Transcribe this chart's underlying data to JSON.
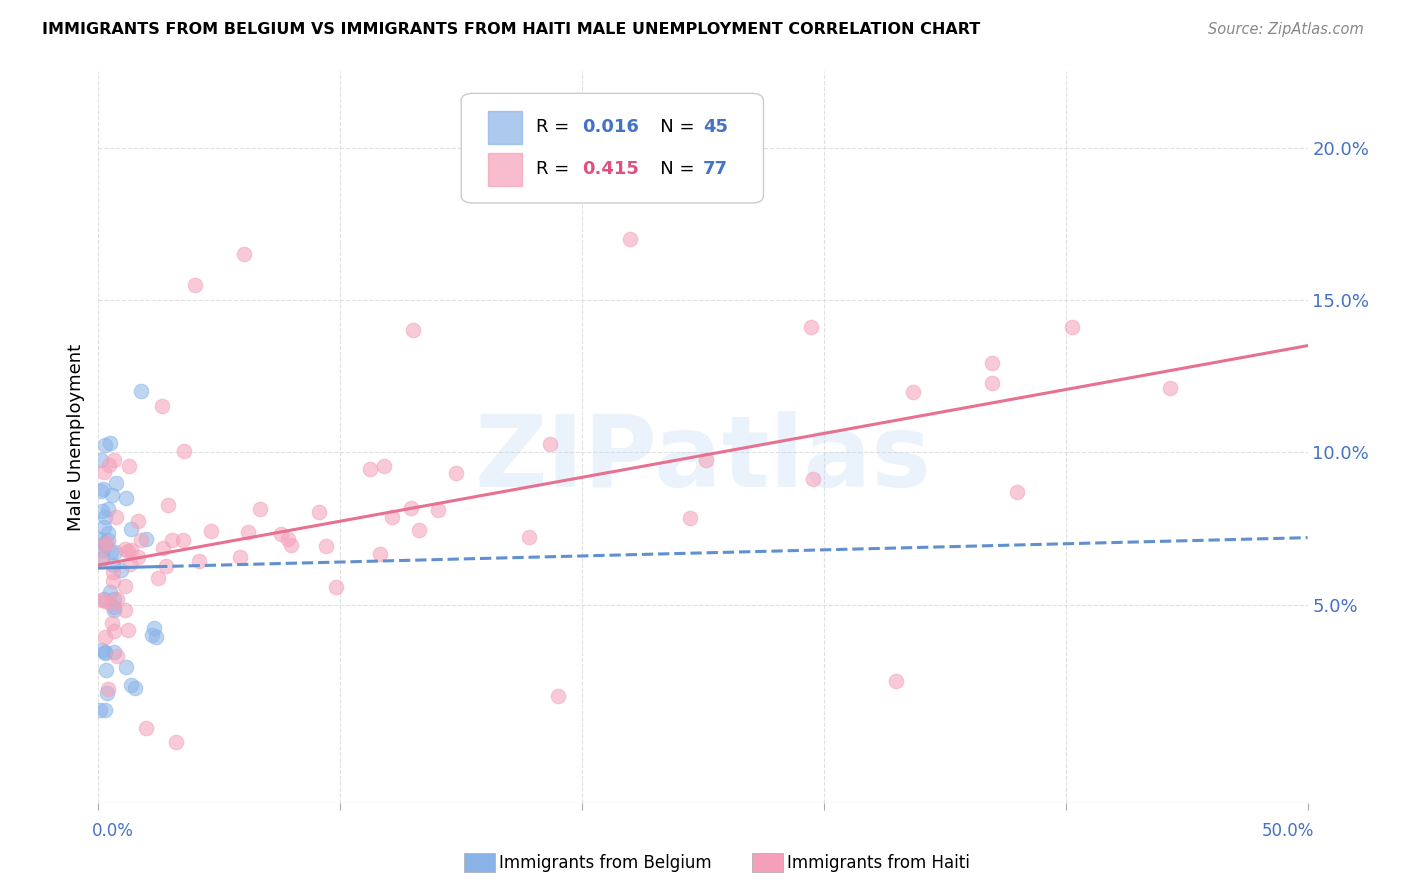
{
  "title": "IMMIGRANTS FROM BELGIUM VS IMMIGRANTS FROM HAITI MALE UNEMPLOYMENT CORRELATION CHART",
  "source": "Source: ZipAtlas.com",
  "ylabel": "Male Unemployment",
  "ytick_labels": [
    "5.0%",
    "10.0%",
    "15.0%",
    "20.0%"
  ],
  "ytick_values": [
    0.05,
    0.1,
    0.15,
    0.2
  ],
  "xlim": [
    0.0,
    0.5
  ],
  "ylim": [
    -0.015,
    0.225
  ],
  "legend_belgium_R": "0.016",
  "legend_belgium_N": "45",
  "legend_haiti_R": "0.415",
  "legend_haiti_N": "77",
  "color_belgium": "#8ab4e8",
  "color_haiti": "#f4a0b8",
  "color_belgium_line": "#6090d0",
  "color_haiti_line": "#e87090",
  "color_accent": "#4472c4",
  "background_color": "#ffffff",
  "watermark": "ZIPatlas",
  "grid_color": "#dddddd",
  "bel_line_start_x": 0.0,
  "bel_line_start_y": 0.062,
  "bel_line_end_x": 0.5,
  "bel_line_end_y": 0.072,
  "hai_line_start_x": 0.0,
  "hai_line_start_y": 0.063,
  "hai_line_end_x": 0.5,
  "hai_line_end_y": 0.135
}
